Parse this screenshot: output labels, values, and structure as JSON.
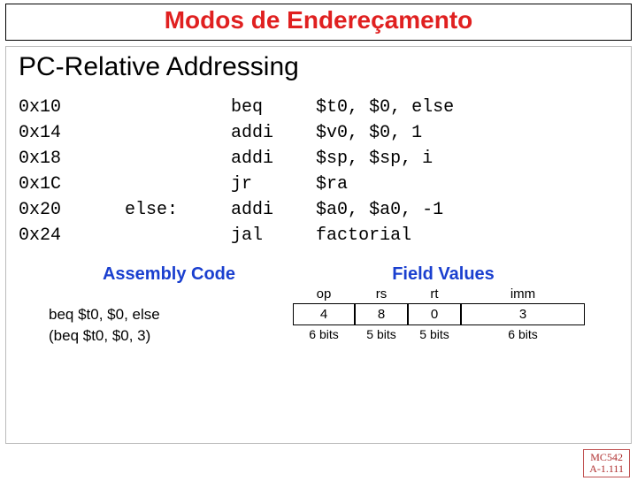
{
  "title": "Modos de Endereçamento",
  "subtitle": "PC-Relative Addressing",
  "code": {
    "rows": [
      {
        "addr": "0x10",
        "label": "",
        "instr": "beq",
        "args": "$t0, $0, else"
      },
      {
        "addr": "0x14",
        "label": "",
        "instr": "addi",
        "args": "$v0, $0, 1"
      },
      {
        "addr": "0x18",
        "label": "",
        "instr": "addi",
        "args": "$sp, $sp, i"
      },
      {
        "addr": "0x1C",
        "label": "",
        "instr": "jr",
        "args": "$ra"
      },
      {
        "addr": "0x20",
        "label": "else:",
        "instr": "addi",
        "args": "$a0, $a0, -1"
      },
      {
        "addr": "0x24",
        "label": "",
        "instr": "jal",
        "args": "factorial"
      }
    ]
  },
  "diagram": {
    "left_header": "Assembly Code",
    "right_header": "Field Values",
    "field_labels": {
      "op": "op",
      "rs": "rs",
      "rt": "rt",
      "imm": "imm"
    },
    "asm_line1": "beq $t0, $0, else",
    "asm_line2": "(beq $t0, $0, 3)",
    "values": {
      "op": "4",
      "rs": "8",
      "rt": "0",
      "imm": "3"
    },
    "bits": {
      "op": "6 bits",
      "rs": "5 bits",
      "rt": "5 bits",
      "imm": "6 bits"
    }
  },
  "footer": {
    "l1": "MC542",
    "l2": "A-1.111"
  },
  "colors": {
    "title": "#e02020",
    "header_blue": "#1a3fcf",
    "footer_border": "#c05050",
    "footer_text": "#b03030"
  }
}
